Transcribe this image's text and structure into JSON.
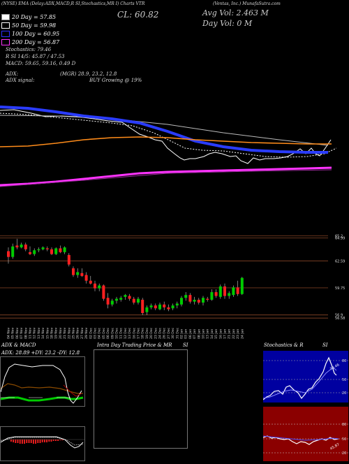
{
  "header": {
    "line1": "(NYSE) EMA (Delay:ADX,MACD,R SI,Stochastics,MR I) Charts VTR",
    "company": "(Ventas, Inc.) MunafaSutra.com",
    "close_label": "CL: 60.82",
    "avg_vol": "Avg Vol: 2.463 M",
    "day_vol": "Day Vol: 0 M"
  },
  "legend": [
    {
      "label": "20 Day = 57.85",
      "color": "#ffffff"
    },
    {
      "label": "50 Day = 59.98",
      "color": "#ffffff"
    },
    {
      "label": "100 Day = 60.95",
      "color": "#3030ff"
    },
    {
      "label": "200 Day = 56.87",
      "color": "#ff33ff"
    }
  ],
  "indicators": {
    "stochastics": "Stochastics: 79.46",
    "rsi": "R SI 14/5: 45.87 / 47.53",
    "macd": "MACD: 59.65, 59.16, 0.49 D",
    "adx": "ADX:",
    "adx_vals": "(MGR) 28.9, 23.2, 12.8",
    "adx_signal": "ADX signal:",
    "signal_val": "BUY Growing @ 19%"
  },
  "chart_data": [
    {
      "type": "line",
      "name": "ema-overview",
      "series": [
        {
          "name": "200 Day",
          "color": "#ff33ff",
          "values": [
            56.8,
            56.9,
            57.0,
            57.2,
            57.4,
            57.6,
            57.8,
            57.9,
            58.0,
            58.1,
            58.2,
            58.3,
            58.4,
            58.5,
            58.6,
            58.6,
            58.7
          ]
        },
        {
          "name": "100 Day",
          "color": "#3030ff",
          "values": [
            63.5,
            63.3,
            63.0,
            62.6,
            62.0,
            61.5,
            61.0,
            60.7,
            60.5,
            60.4,
            60.3,
            60.3,
            60.2
          ]
        },
        {
          "name": "50 Day",
          "color": "#ff8c1a",
          "values": [
            60.8,
            61.0,
            61.3,
            61.6,
            61.8,
            61.7,
            61.4,
            61.1,
            60.9,
            60.7,
            60.6,
            60.6
          ]
        }
      ]
    },
    {
      "type": "candlestick",
      "name": "daily-price",
      "x": [
        "04 Nov",
        "05 Nov",
        "06 Nov",
        "07 Nov",
        "08 Nov",
        "11 Nov",
        "12 Nov",
        "13 Nov",
        "14 Nov",
        "15 Nov",
        "18 Nov",
        "19 Nov",
        "20 Nov",
        "21 Nov",
        "22 Nov",
        "25 Nov",
        "26 Nov",
        "27 Nov",
        "29 Nov",
        "02 Dec",
        "03 Dec",
        "04 Dec",
        "05 Dec",
        "06 Dec",
        "09 Dec",
        "10 Dec",
        "11 Dec",
        "12 Dec",
        "13 Dec",
        "16 Dec",
        "17 Dec",
        "18 Dec",
        "19 Dec",
        "20 Dec",
        "23 Dec",
        "24 Dec",
        "26 Dec",
        "27 Dec",
        "30 Dec",
        "31 Dec",
        "02 Jan",
        "03 Jan",
        "06 Jan",
        "07 Jan",
        "08 Jan",
        "10 Jan",
        "13 Jan",
        "14 Jan",
        "15 Jan",
        "16 Jan",
        "17 Jan",
        "21 Jan",
        "22 Jan",
        "23 Jan",
        "24 Jan"
      ],
      "y_ticks": [
        65.2,
        64.99,
        62.59,
        59.75,
        56.9,
        56.58
      ],
      "ylim": [
        56.0,
        66.5
      ],
      "candles": [
        {
          "o": 63.6,
          "h": 64.0,
          "l": 62.3,
          "c": 63.0
        },
        {
          "o": 63.0,
          "h": 64.4,
          "l": 62.8,
          "c": 64.1
        },
        {
          "o": 64.2,
          "h": 64.9,
          "l": 63.8,
          "c": 64.0
        },
        {
          "o": 64.0,
          "h": 64.5,
          "l": 63.9,
          "c": 64.3
        },
        {
          "o": 64.3,
          "h": 64.5,
          "l": 63.6,
          "c": 63.8
        },
        {
          "o": 63.5,
          "h": 64.1,
          "l": 63.2,
          "c": 63.3
        },
        {
          "o": 63.3,
          "h": 63.9,
          "l": 63.1,
          "c": 63.7
        },
        {
          "o": 63.7,
          "h": 64.0,
          "l": 63.5,
          "c": 63.8
        },
        {
          "o": 63.8,
          "h": 64.1,
          "l": 63.7,
          "c": 64.0
        },
        {
          "o": 63.9,
          "h": 64.1,
          "l": 63.6,
          "c": 63.8
        },
        {
          "o": 63.8,
          "h": 64.0,
          "l": 63.2,
          "c": 63.3
        },
        {
          "o": 63.3,
          "h": 64.0,
          "l": 63.2,
          "c": 63.9
        },
        {
          "o": 63.9,
          "h": 64.2,
          "l": 63.4,
          "c": 63.5
        },
        {
          "o": 63.5,
          "h": 64.1,
          "l": 63.3,
          "c": 64.0
        },
        {
          "o": 63.2,
          "h": 63.4,
          "l": 62.0,
          "c": 62.2
        },
        {
          "o": 61.8,
          "h": 62.0,
          "l": 60.9,
          "c": 61.1
        },
        {
          "o": 61.1,
          "h": 61.8,
          "l": 60.8,
          "c": 61.4
        },
        {
          "o": 61.3,
          "h": 61.8,
          "l": 60.9,
          "c": 61.0
        },
        {
          "o": 61.1,
          "h": 61.4,
          "l": 60.2,
          "c": 60.5
        },
        {
          "o": 60.5,
          "h": 61.0,
          "l": 60.1,
          "c": 60.2
        },
        {
          "o": 60.2,
          "h": 60.5,
          "l": 59.4,
          "c": 59.7
        },
        {
          "o": 59.7,
          "h": 60.2,
          "l": 59.4,
          "c": 60.0
        },
        {
          "o": 60.0,
          "h": 60.1,
          "l": 58.4,
          "c": 58.6
        },
        {
          "o": 58.7,
          "h": 59.2,
          "l": 57.6,
          "c": 58.0
        },
        {
          "o": 58.0,
          "h": 58.6,
          "l": 57.8,
          "c": 58.4
        },
        {
          "o": 58.4,
          "h": 58.8,
          "l": 58.1,
          "c": 58.6
        },
        {
          "o": 58.5,
          "h": 58.9,
          "l": 58.3,
          "c": 58.7
        },
        {
          "o": 58.8,
          "h": 59.1,
          "l": 58.5,
          "c": 59.0
        },
        {
          "o": 58.9,
          "h": 59.1,
          "l": 58.4,
          "c": 58.6
        },
        {
          "o": 58.6,
          "h": 58.8,
          "l": 58.0,
          "c": 58.2
        },
        {
          "o": 58.2,
          "h": 58.8,
          "l": 58.0,
          "c": 58.6
        },
        {
          "o": 58.5,
          "h": 58.7,
          "l": 56.9,
          "c": 57.1
        },
        {
          "o": 57.2,
          "h": 57.9,
          "l": 56.9,
          "c": 57.7
        },
        {
          "o": 57.7,
          "h": 58.1,
          "l": 57.5,
          "c": 57.9
        },
        {
          "o": 57.9,
          "h": 58.1,
          "l": 57.4,
          "c": 57.6
        },
        {
          "o": 57.5,
          "h": 58.2,
          "l": 57.4,
          "c": 58.0
        },
        {
          "o": 58.0,
          "h": 58.3,
          "l": 57.4,
          "c": 57.7
        },
        {
          "o": 57.7,
          "h": 58.0,
          "l": 57.3,
          "c": 57.5
        },
        {
          "o": 57.6,
          "h": 58.1,
          "l": 57.4,
          "c": 57.9
        },
        {
          "o": 57.9,
          "h": 58.3,
          "l": 57.6,
          "c": 58.1
        },
        {
          "o": 58.0,
          "h": 58.9,
          "l": 57.8,
          "c": 58.7
        },
        {
          "o": 58.7,
          "h": 59.3,
          "l": 58.4,
          "c": 59.0
        },
        {
          "o": 59.0,
          "h": 59.2,
          "l": 58.1,
          "c": 58.3
        },
        {
          "o": 58.3,
          "h": 58.8,
          "l": 58.0,
          "c": 58.5
        },
        {
          "o": 58.5,
          "h": 58.7,
          "l": 58.0,
          "c": 58.2
        },
        {
          "o": 58.2,
          "h": 58.9,
          "l": 57.9,
          "c": 58.7
        },
        {
          "o": 58.6,
          "h": 58.8,
          "l": 58.3,
          "c": 58.5
        },
        {
          "o": 58.5,
          "h": 59.6,
          "l": 58.4,
          "c": 59.3
        },
        {
          "o": 59.3,
          "h": 59.6,
          "l": 58.7,
          "c": 58.9
        },
        {
          "o": 58.8,
          "h": 60.1,
          "l": 58.6,
          "c": 59.9
        },
        {
          "o": 59.9,
          "h": 60.2,
          "l": 58.6,
          "c": 58.9
        },
        {
          "o": 58.9,
          "h": 59.4,
          "l": 58.6,
          "c": 59.2
        },
        {
          "o": 59.0,
          "h": 60.0,
          "l": 58.8,
          "c": 59.8
        },
        {
          "o": 59.8,
          "h": 60.5,
          "l": 58.9,
          "c": 59.1
        },
        {
          "o": 59.1,
          "h": 60.9,
          "l": 59.0,
          "c": 60.8
        }
      ]
    }
  ],
  "panels": {
    "adx_title": "ADX & MACD",
    "adx_values": "ADX: 28.89 +DY: 23.2 -DY: 12.8",
    "intraday_title": "Intra Day Trading Price & MR",
    "intraday_si": "SI",
    "stoch_title": "Stochastics & R",
    "stoch_si": "SI",
    "stoch_ticks": [
      "80",
      "50",
      "20"
    ],
    "rsi_ticks": [
      "80",
      "50",
      "20"
    ],
    "stoch_label": "79.46",
    "rsi_label": "45.87"
  }
}
